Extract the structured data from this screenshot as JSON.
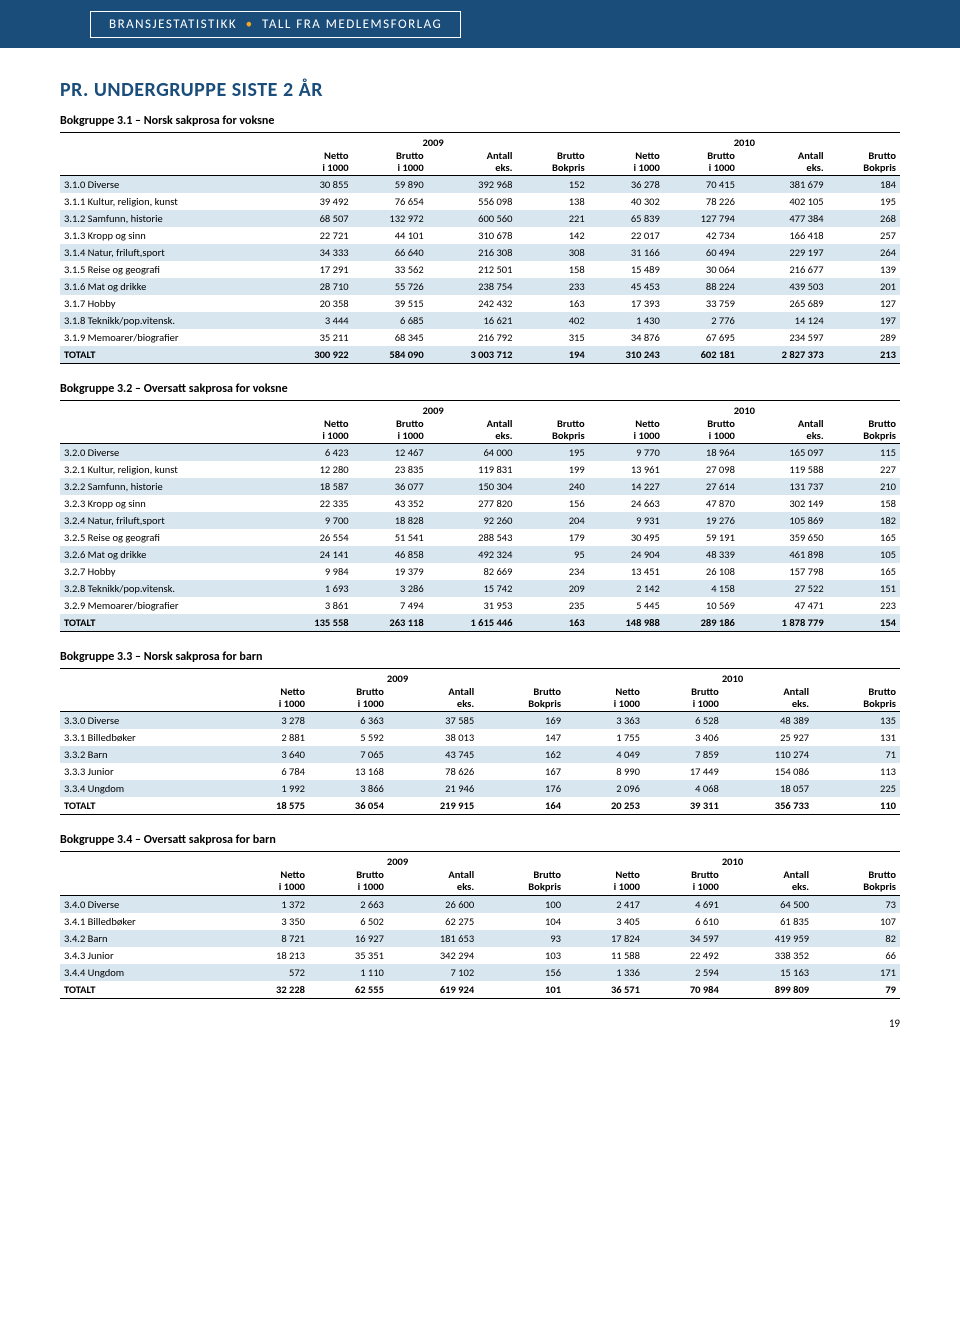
{
  "header": {
    "left": "BRANSJESTATISTIKK",
    "right": "TALL FRA MEDLEMSFORLAG"
  },
  "mainTitle": "PR. UNDERGRUPPE SISTE 2 ÅR",
  "years": [
    "2009",
    "2010"
  ],
  "columnHeaders": [
    [
      "Netto",
      "i 1000"
    ],
    [
      "Brutto",
      "i 1000"
    ],
    [
      "Antall",
      "eks."
    ],
    [
      "Brutto",
      "Bokpris"
    ],
    [
      "Netto",
      "i 1000"
    ],
    [
      "Brutto",
      "i 1000"
    ],
    [
      "Antall",
      "eks."
    ],
    [
      "Brutto",
      "Bokpris"
    ]
  ],
  "tables": [
    {
      "title": "Bokgruppe 3.1 – Norsk sakprosa for voksne",
      "rows": [
        {
          "label": "3.1.0 Diverse",
          "v": [
            "30 855",
            "59 890",
            "392 968",
            "152",
            "36 278",
            "70 415",
            "381 679",
            "184"
          ]
        },
        {
          "label": "3.1.1 Kultur, religion, kunst",
          "v": [
            "39 492",
            "76 654",
            "556 098",
            "138",
            "40 302",
            "78 226",
            "402 105",
            "195"
          ]
        },
        {
          "label": "3.1.2 Samfunn, historie",
          "v": [
            "68 507",
            "132 972",
            "600 560",
            "221",
            "65 839",
            "127 794",
            "477 384",
            "268"
          ]
        },
        {
          "label": "3.1.3 Kropp og sinn",
          "v": [
            "22 721",
            "44 101",
            "310 678",
            "142",
            "22 017",
            "42 734",
            "166 418",
            "257"
          ]
        },
        {
          "label": "3.1.4 Natur, friluft,sport",
          "v": [
            "34 333",
            "66 640",
            "216 308",
            "308",
            "31 166",
            "60 494",
            "229 197",
            "264"
          ]
        },
        {
          "label": "3.1.5 Reise og geografi",
          "v": [
            "17 291",
            "33 562",
            "212 501",
            "158",
            "15 489",
            "30 064",
            "216 677",
            "139"
          ]
        },
        {
          "label": "3.1.6 Mat og drikke",
          "v": [
            "28 710",
            "55 726",
            "238 754",
            "233",
            "45 453",
            "88 224",
            "439 503",
            "201"
          ]
        },
        {
          "label": "3.1.7 Hobby",
          "v": [
            "20 358",
            "39 515",
            "242 432",
            "163",
            "17 393",
            "33 759",
            "265 689",
            "127"
          ]
        },
        {
          "label": "3.1.8 Teknikk/pop.vitensk.",
          "v": [
            "3 444",
            "6 685",
            "16 621",
            "402",
            "1 430",
            "2 776",
            "14 124",
            "197"
          ]
        },
        {
          "label": "3.1.9 Memoarer/biografier",
          "v": [
            "35 211",
            "68 345",
            "216 792",
            "315",
            "34 876",
            "67 695",
            "234 597",
            "289"
          ]
        },
        {
          "label": "TOTALT",
          "v": [
            "300 922",
            "584 090",
            "3 003 712",
            "194",
            "310 243",
            "602 181",
            "2 827 373",
            "213"
          ],
          "total": true
        }
      ]
    },
    {
      "title": "Bokgruppe 3.2 – Oversatt sakprosa for voksne",
      "rows": [
        {
          "label": "3.2.0 Diverse",
          "v": [
            "6 423",
            "12 467",
            "64 000",
            "195",
            "9 770",
            "18 964",
            "165 097",
            "115"
          ]
        },
        {
          "label": "3.2.1 Kultur, religion, kunst",
          "v": [
            "12 280",
            "23 835",
            "119 831",
            "199",
            "13 961",
            "27 098",
            "119 588",
            "227"
          ]
        },
        {
          "label": "3.2.2 Samfunn, historie",
          "v": [
            "18 587",
            "36 077",
            "150 304",
            "240",
            "14 227",
            "27 614",
            "131 737",
            "210"
          ]
        },
        {
          "label": "3.2.3 Kropp og sinn",
          "v": [
            "22 335",
            "43 352",
            "277 820",
            "156",
            "24 663",
            "47 870",
            "302 149",
            "158"
          ]
        },
        {
          "label": "3.2.4 Natur, friluft,sport",
          "v": [
            "9 700",
            "18 828",
            "92 260",
            "204",
            "9 931",
            "19 276",
            "105 869",
            "182"
          ]
        },
        {
          "label": "3.2.5 Reise og geografi",
          "v": [
            "26 554",
            "51 541",
            "288 543",
            "179",
            "30 495",
            "59 191",
            "359 650",
            "165"
          ]
        },
        {
          "label": "3.2.6 Mat og drikke",
          "v": [
            "24 141",
            "46 858",
            "492 324",
            "95",
            "24 904",
            "48 339",
            "461 898",
            "105"
          ]
        },
        {
          "label": "3.2.7 Hobby",
          "v": [
            "9 984",
            "19 379",
            "82 669",
            "234",
            "13 451",
            "26 108",
            "157 798",
            "165"
          ]
        },
        {
          "label": "3.2.8 Teknikk/pop.vitensk.",
          "v": [
            "1 693",
            "3 286",
            "15 742",
            "209",
            "2 142",
            "4 158",
            "27 522",
            "151"
          ]
        },
        {
          "label": "3.2.9 Memoarer/biografier",
          "v": [
            "3 861",
            "7 494",
            "31 953",
            "235",
            "5 445",
            "10 569",
            "47 471",
            "223"
          ]
        },
        {
          "label": "TOTALT",
          "v": [
            "135 558",
            "263 118",
            "1 615 446",
            "163",
            "148 988",
            "289 186",
            "1 878 779",
            "154"
          ],
          "total": true
        }
      ]
    },
    {
      "title": "Bokgruppe 3.3 – Norsk sakprosa for barn",
      "rows": [
        {
          "label": "3.3.0 Diverse",
          "v": [
            "3 278",
            "6 363",
            "37 585",
            "169",
            "3 363",
            "6 528",
            "48 389",
            "135"
          ]
        },
        {
          "label": "3.3.1 Billedbøker",
          "v": [
            "2 881",
            "5 592",
            "38 013",
            "147",
            "1 755",
            "3 406",
            "25 927",
            "131"
          ]
        },
        {
          "label": "3.3.2 Barn",
          "v": [
            "3 640",
            "7 065",
            "43 745",
            "162",
            "4 049",
            "7 859",
            "110 274",
            "71"
          ]
        },
        {
          "label": "3.3.3 Junior",
          "v": [
            "6 784",
            "13 168",
            "78 626",
            "167",
            "8 990",
            "17 449",
            "154 086",
            "113"
          ]
        },
        {
          "label": "3.3.4 Ungdom",
          "v": [
            "1 992",
            "3 866",
            "21 946",
            "176",
            "2 096",
            "4 068",
            "18 057",
            "225"
          ]
        },
        {
          "label": "TOTALT",
          "v": [
            "18 575",
            "36 054",
            "219 915",
            "164",
            "20 253",
            "39 311",
            "356 733",
            "110"
          ],
          "total": true
        }
      ]
    },
    {
      "title": "Bokgruppe 3.4 – Oversatt sakprosa for barn",
      "rows": [
        {
          "label": "3.4.0 Diverse",
          "v": [
            "1 372",
            "2 663",
            "26 600",
            "100",
            "2 417",
            "4 691",
            "64 500",
            "73"
          ]
        },
        {
          "label": "3.4.1 Billedbøker",
          "v": [
            "3 350",
            "6 502",
            "62 275",
            "104",
            "3 405",
            "6 610",
            "61 835",
            "107"
          ]
        },
        {
          "label": "3.4.2 Barn",
          "v": [
            "8 721",
            "16 927",
            "181 653",
            "93",
            "17 824",
            "34 597",
            "419 959",
            "82"
          ]
        },
        {
          "label": "3.4.3 Junior",
          "v": [
            "18 213",
            "35 351",
            "342 294",
            "103",
            "11 588",
            "22 492",
            "338 352",
            "66"
          ]
        },
        {
          "label": "3.4.4 Ungdom",
          "v": [
            "572",
            "1 110",
            "7 102",
            "156",
            "1 336",
            "2 594",
            "15 163",
            "171"
          ]
        },
        {
          "label": "TOTALT",
          "v": [
            "32 228",
            "62 555",
            "619 924",
            "101",
            "36 571",
            "70 984",
            "899 809",
            "79"
          ],
          "total": true
        }
      ]
    }
  ],
  "pageNumber": "19",
  "colors": {
    "headerBg": "#1a4d7a",
    "stripe": "#d8e6f0",
    "accentDot": "#f5a623"
  }
}
